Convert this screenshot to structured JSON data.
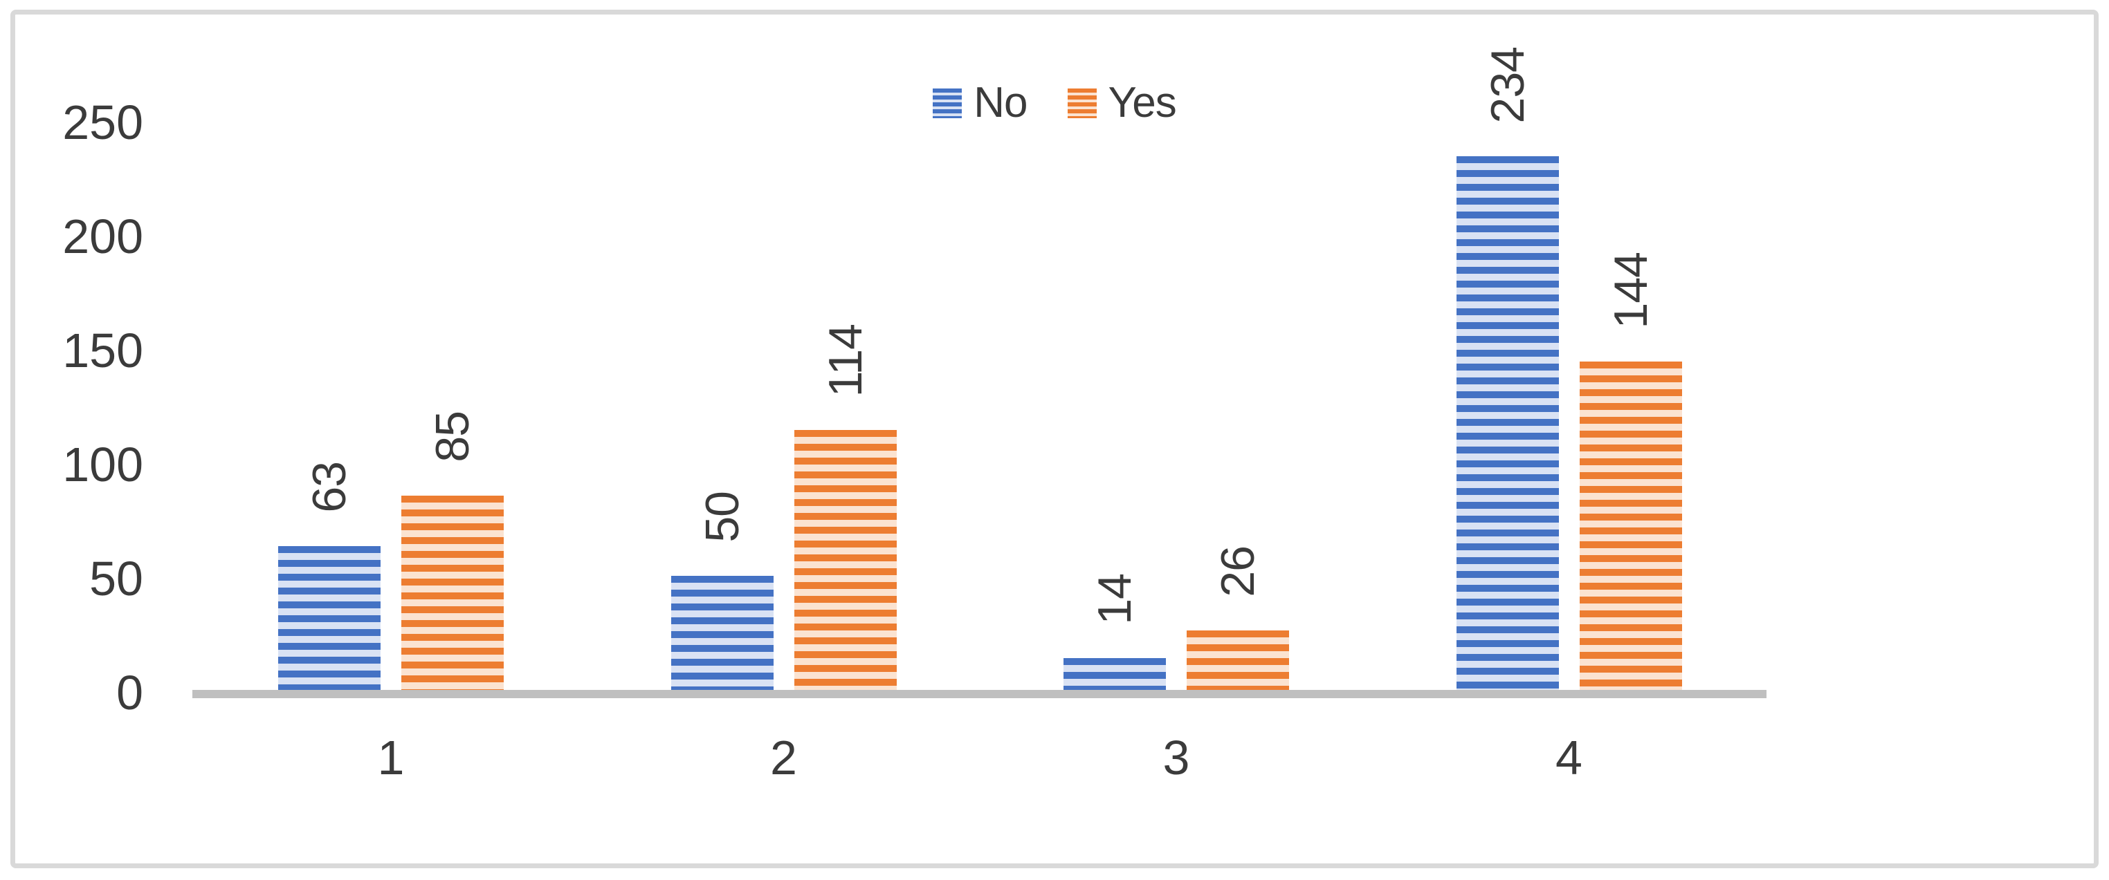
{
  "chart_data": {
    "type": "bar",
    "title": "",
    "categories": [
      "1",
      "2",
      "3",
      "4"
    ],
    "series": [
      {
        "name": "No",
        "values": [
          63,
          50,
          14,
          234
        ],
        "color": "#4472C4",
        "stripe_light": "#D9E2F4"
      },
      {
        "name": "Yes",
        "values": [
          85,
          114,
          26,
          144
        ],
        "color": "#ED7D31",
        "stripe_light": "#FBE3D1"
      }
    ],
    "y_ticks": [
      0,
      50,
      100,
      150,
      200,
      250
    ],
    "ylim": [
      0,
      250
    ],
    "xlabel": "",
    "ylabel": "",
    "grid": false,
    "legend": {
      "position": "top-center",
      "entries": [
        "No",
        "Yes"
      ]
    },
    "data_labels": {
      "visible": true,
      "rotation": -90
    },
    "pattern_fill": "horizontal-stripes",
    "colors": {
      "axis_line": "#BFBFBF",
      "text": "#3B3B3B",
      "frame_border": "#D9D9D9",
      "background": "#FFFFFF"
    }
  }
}
